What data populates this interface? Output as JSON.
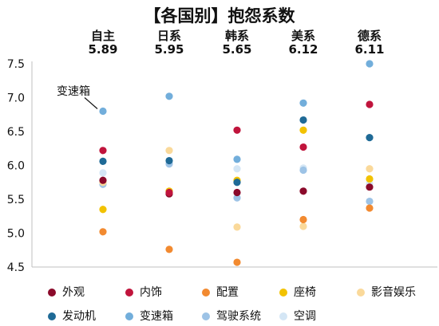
{
  "chart_data": {
    "type": "scatter",
    "title": "【各国别】抱怨系数",
    "categories": [
      "自主",
      "日系",
      "韩系",
      "美系",
      "德系"
    ],
    "category_values": [
      "5.89",
      "5.95",
      "5.65",
      "6.12",
      "6.11"
    ],
    "ylim": [
      4.5,
      7.5
    ],
    "yticks": [
      "4.5",
      "5.0",
      "5.5",
      "6.0",
      "6.5",
      "7.0",
      "7.5"
    ],
    "grid": false,
    "legend_position": "bottom",
    "annotation": {
      "text": "变速箱",
      "category": "自主",
      "y": 6.8
    },
    "series": [
      {
        "name": "外观",
        "color": "#8B0A2B",
        "values": [
          5.78,
          5.58,
          5.6,
          5.62,
          5.68
        ]
      },
      {
        "name": "内饰",
        "color": "#C0143C",
        "values": [
          6.22,
          5.6,
          6.52,
          6.27,
          6.9
        ]
      },
      {
        "name": "配置",
        "color": "#F28A30",
        "values": [
          5.02,
          4.76,
          4.57,
          5.2,
          5.37
        ]
      },
      {
        "name": "座椅",
        "color": "#F2C200",
        "values": [
          5.35,
          5.62,
          5.78,
          6.52,
          5.8
        ]
      },
      {
        "name": "影音娱乐",
        "color": "#FAD99A",
        "values": [
          5.75,
          6.22,
          5.09,
          5.1,
          5.95
        ]
      },
      {
        "name": "发动机",
        "color": "#1F6A96",
        "values": [
          6.06,
          6.07,
          5.75,
          6.67,
          6.41
        ]
      },
      {
        "name": "变速箱",
        "color": "#72AEDB",
        "values": [
          6.8,
          7.02,
          6.09,
          6.92,
          7.5
        ]
      },
      {
        "name": "驾驶系统",
        "color": "#9DC3E6",
        "values": [
          5.72,
          6.02,
          5.52,
          5.93,
          5.47
        ]
      },
      {
        "name": "空调",
        "color": "#D4E6F5",
        "values": [
          5.89,
          5.62,
          5.95,
          5.96,
          5.73
        ]
      }
    ]
  }
}
